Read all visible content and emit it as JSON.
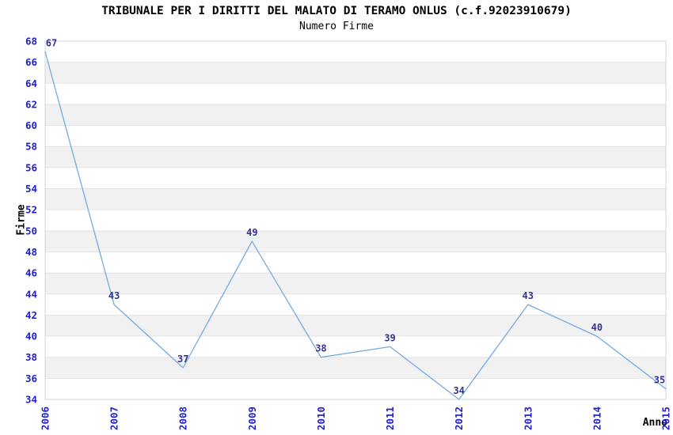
{
  "chart_data": {
    "type": "line",
    "title": "TRIBUNALE PER I DIRITTI DEL MALATO DI TERAMO ONLUS (c.f.92023910679)",
    "subtitle": "Numero Firme",
    "xlabel": "Anno",
    "ylabel": "Firme",
    "x": [
      "2006",
      "2007",
      "2008",
      "2009",
      "2010",
      "2011",
      "2012",
      "2013",
      "2014",
      "2015"
    ],
    "values": [
      67,
      43,
      37,
      49,
      38,
      39,
      34,
      43,
      40,
      35
    ],
    "ylim": [
      34,
      68
    ],
    "ytick_step": 2,
    "grid": "horizontal-bands-alternating",
    "legend": "none",
    "marker": "none",
    "colors": {
      "line": "#74ABE2",
      "tick_label": "#2020CC",
      "value_label": "#333399",
      "band": "#F1F1F1",
      "grid_line": "#E4E4E4",
      "plot_border": "#D4D4D4",
      "title_text": "#000000",
      "background": "#FFFFFF"
    }
  }
}
